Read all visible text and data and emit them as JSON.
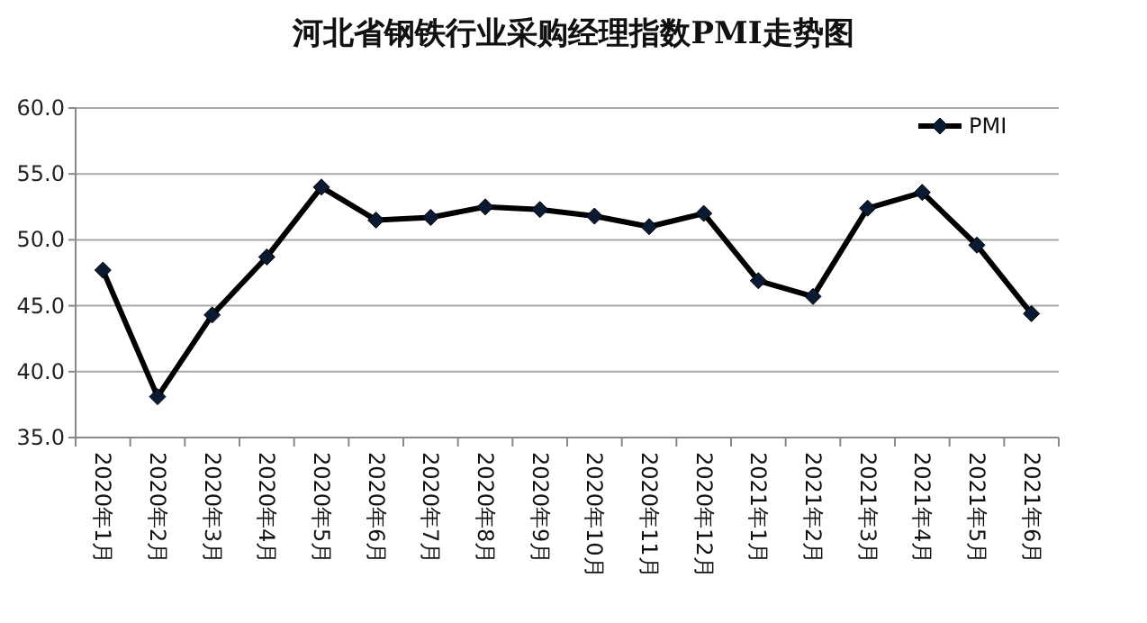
{
  "chart_data": {
    "type": "line",
    "title": "河北省钢铁行业采购经理指数PMI走势图",
    "categories": [
      "2020年1月",
      "2020年2月",
      "2020年3月",
      "2020年4月",
      "2020年5月",
      "2020年6月",
      "2020年7月",
      "2020年8月",
      "2020年9月",
      "2020年10月",
      "2020年11月",
      "2020年12月",
      "2021年1月",
      "2021年2月",
      "2021年3月",
      "2021年4月",
      "2021年5月",
      "2021年6月"
    ],
    "series": [
      {
        "name": "PMI",
        "color": "#000000",
        "values": [
          47.7,
          38.1,
          44.3,
          48.7,
          54.0,
          51.5,
          51.7,
          52.5,
          52.3,
          51.8,
          51.0,
          52.0,
          46.9,
          45.7,
          52.4,
          53.6,
          49.6,
          44.4
        ]
      }
    ],
    "ylim": [
      35,
      60
    ],
    "yticks": [
      {
        "value": 35,
        "label": "35.0"
      },
      {
        "value": 40,
        "label": "40.0"
      },
      {
        "value": 45,
        "label": "45.0"
      },
      {
        "value": 50,
        "label": "50.0"
      },
      {
        "value": 55,
        "label": "55.0"
      },
      {
        "value": 60,
        "label": "60.0"
      }
    ],
    "grid": "y",
    "legend": "top right",
    "marker": "diamond",
    "line_style": "solid"
  }
}
